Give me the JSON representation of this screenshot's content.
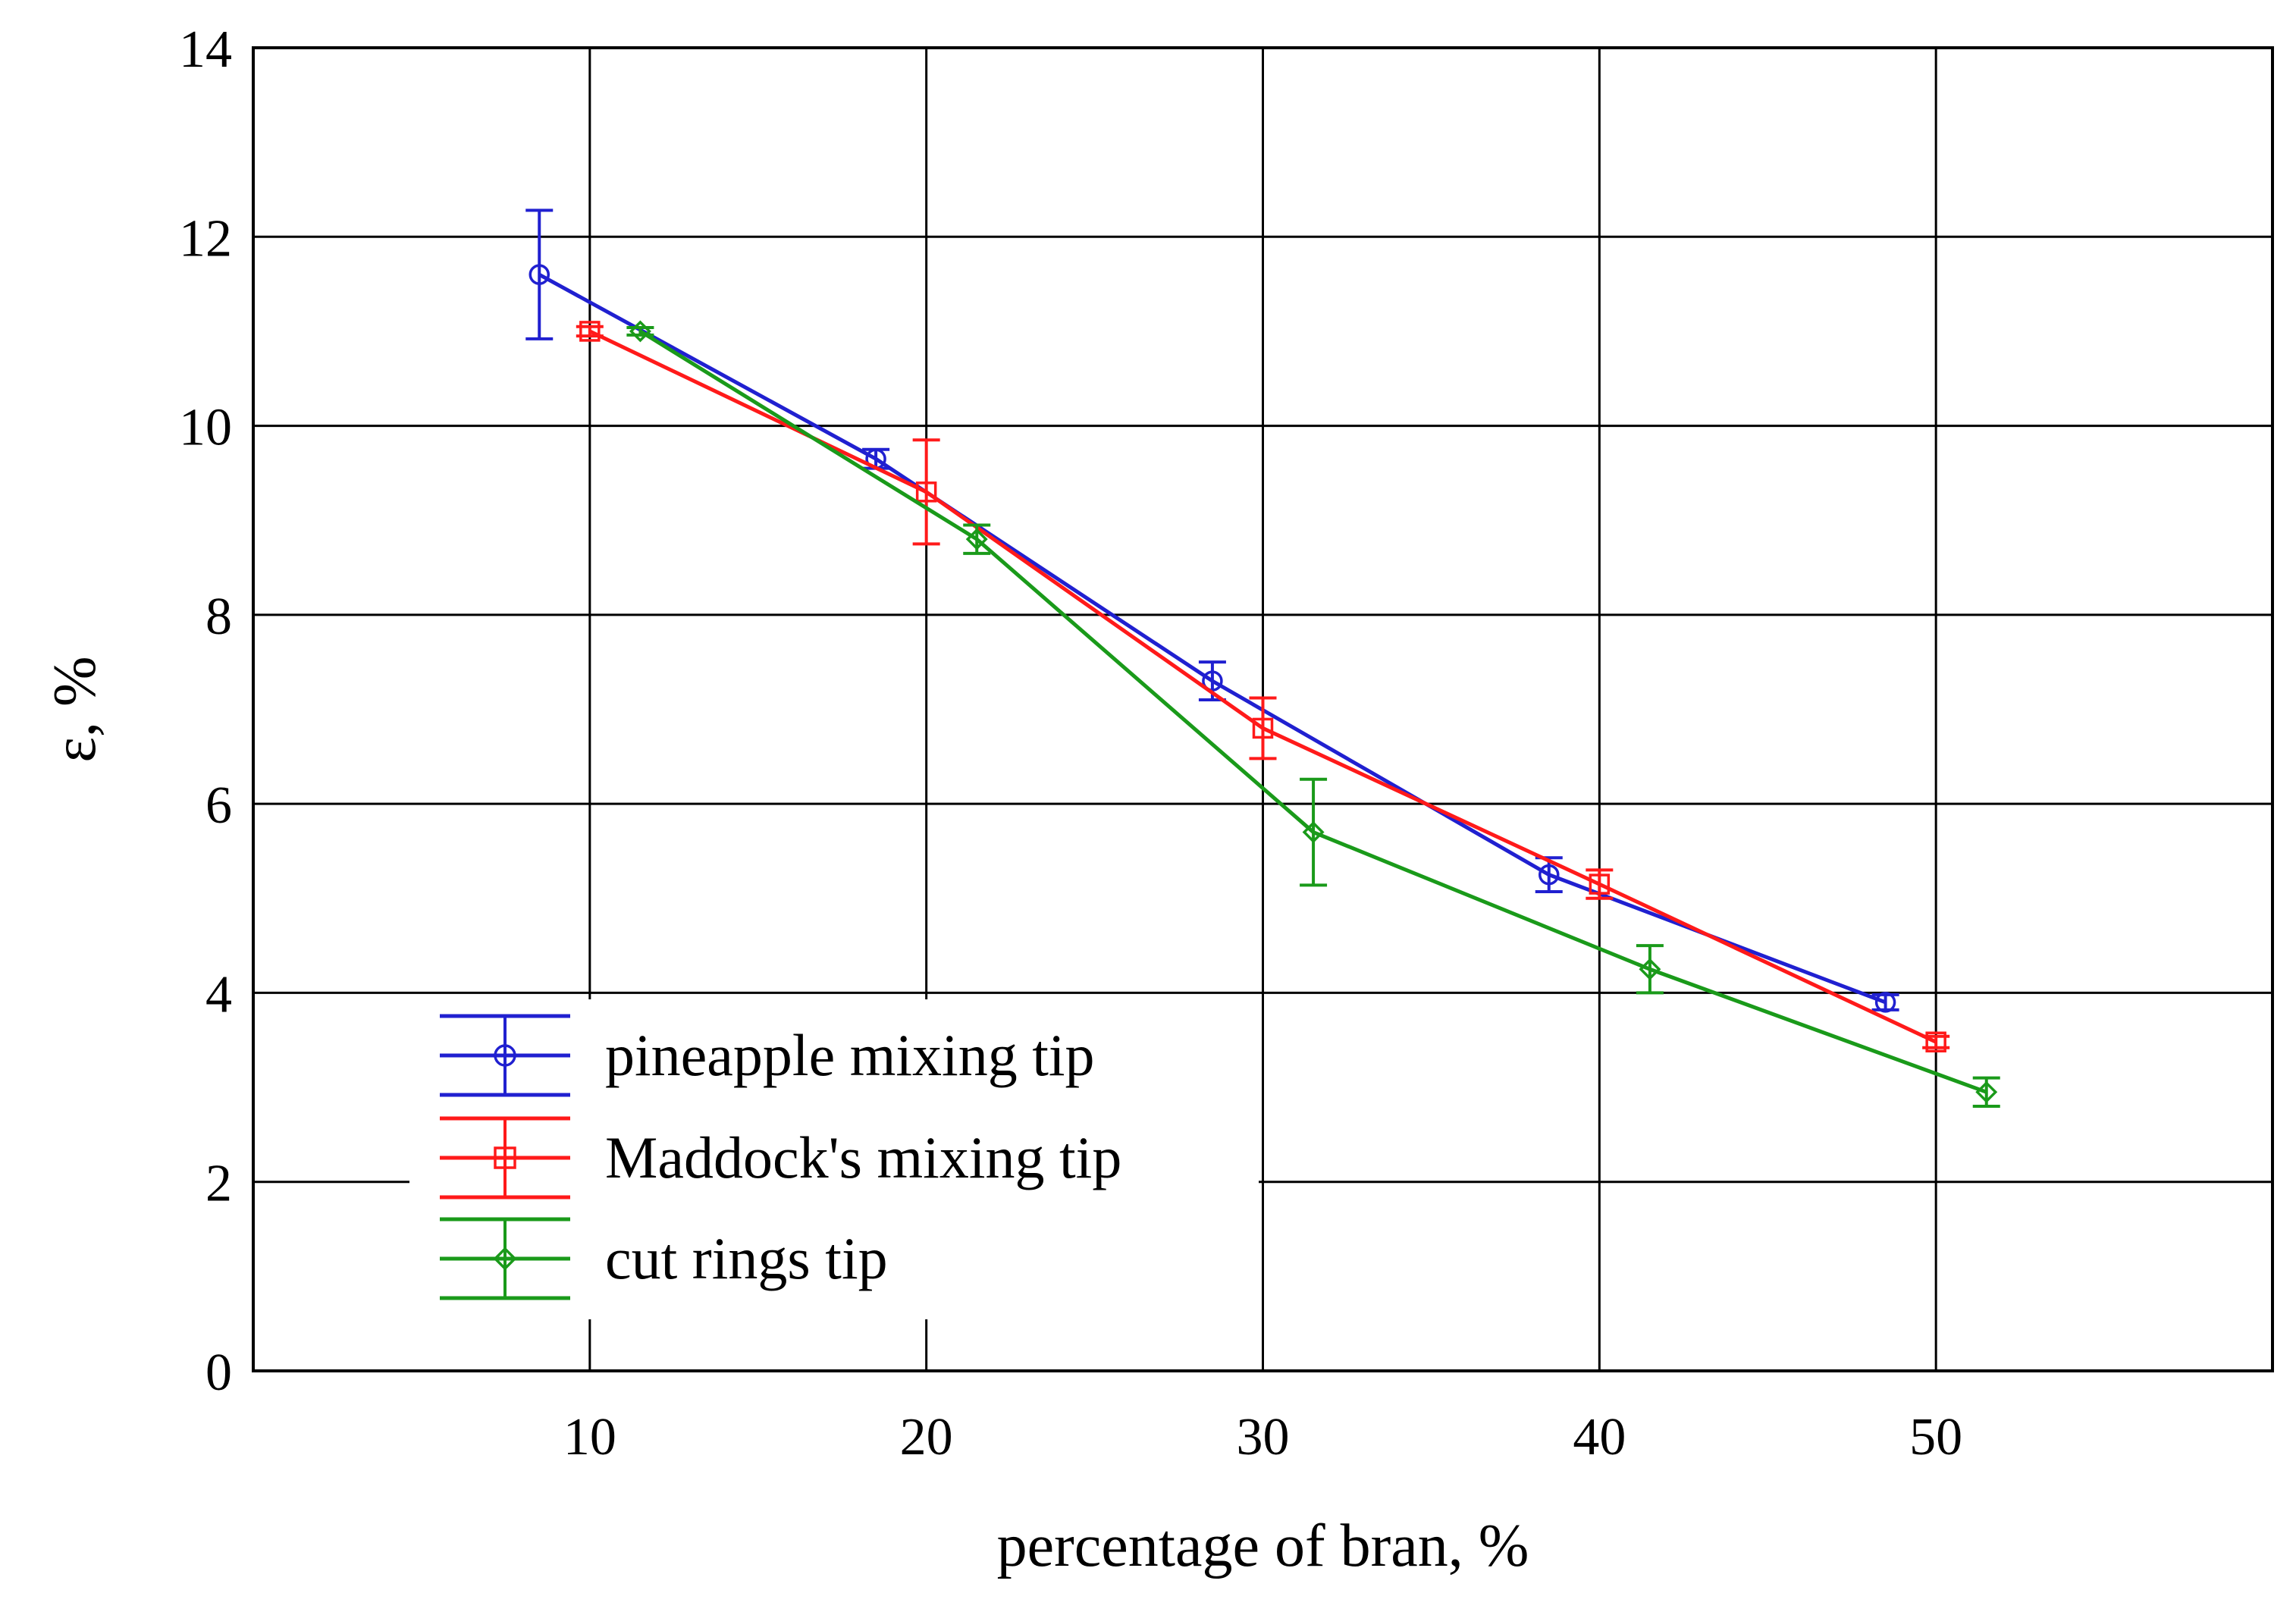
{
  "chart_data": {
    "type": "line",
    "title": "",
    "xlabel": "percentage of bran, %",
    "ylabel": "ε, %",
    "xlim": [
      0,
      60
    ],
    "ylim": [
      0,
      14
    ],
    "xticks": [
      10,
      20,
      30,
      40,
      50
    ],
    "yticks": [
      0,
      2,
      4,
      6,
      8,
      10,
      12,
      14
    ],
    "grid": true,
    "legend_position": "bottom-left",
    "series": [
      {
        "name": "pineapple mixing tip",
        "color": "#2020d0",
        "marker": "circle",
        "x": [
          8.5,
          18.5,
          28.5,
          38.5,
          48.5
        ],
        "y": [
          11.6,
          9.65,
          7.3,
          5.25,
          3.9
        ],
        "err": [
          0.68,
          0.1,
          0.2,
          0.18,
          0.08
        ]
      },
      {
        "name": "Maddock's mixing tip",
        "color": "#ff1a1a",
        "marker": "square",
        "x": [
          10,
          20,
          30,
          40,
          50
        ],
        "y": [
          11.0,
          9.3,
          6.8,
          5.15,
          3.48
        ],
        "err": [
          0.05,
          0.55,
          0.32,
          0.15,
          0.06
        ]
      },
      {
        "name": "cut rings tip",
        "color": "#1a9a1a",
        "marker": "diamond",
        "x": [
          11.5,
          21.5,
          31.5,
          41.5,
          51.5
        ],
        "y": [
          11.0,
          8.8,
          5.7,
          4.25,
          2.95
        ],
        "err": [
          0.04,
          0.15,
          0.56,
          0.25,
          0.15
        ]
      }
    ]
  }
}
